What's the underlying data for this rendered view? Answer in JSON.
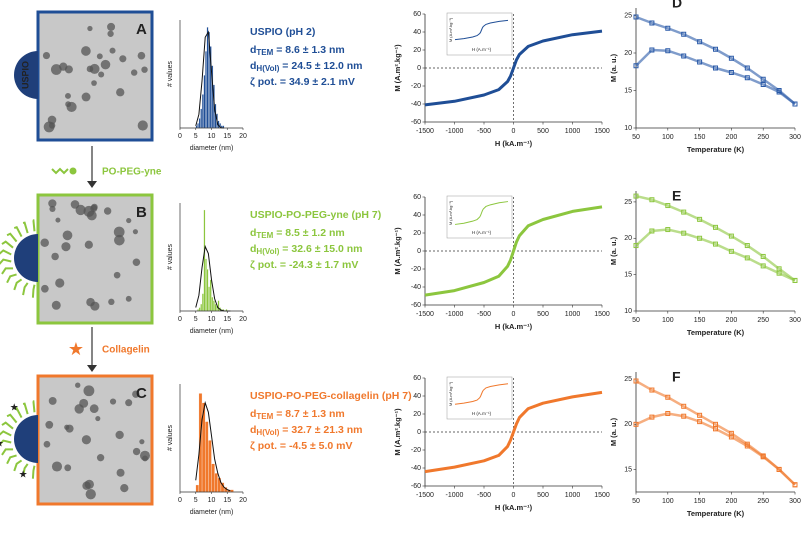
{
  "steps": [
    {
      "label": "PO-PEG-yne",
      "color": "#8cc63e"
    },
    {
      "label": "Collagelin",
      "color": "#f0782c"
    }
  ],
  "rows": [
    {
      "letter": "A",
      "color": "#1f4e96",
      "particle_label": "USPIO",
      "histogram": {
        "type": "histogram",
        "bins": [
          5,
          5.5,
          6,
          6.5,
          7,
          7.5,
          8,
          8.5,
          9,
          9.5,
          10,
          10.5,
          11,
          11.5,
          12,
          12.5,
          13,
          13.5,
          14
        ],
        "counts": [
          1,
          2,
          4,
          8,
          14,
          22,
          32,
          42,
          40,
          34,
          26,
          18,
          10,
          6,
          3,
          2,
          1,
          1
        ],
        "xlim": [
          0,
          20
        ],
        "ylim": [
          0,
          45
        ],
        "xticks": [
          0,
          5,
          10,
          15,
          20
        ],
        "xlabel": "diameter (nm)",
        "ylabel": "# values",
        "fit": {
          "x": [
            5,
            6,
            7,
            8,
            9,
            10,
            11,
            12,
            13,
            14
          ],
          "values": [
            0.9,
            5.7,
            19.7,
            37.8,
            40,
            23.5,
            7.7,
            1.4,
            0.1,
            0
          ]
        }
      },
      "info": {
        "title": "USPIO (pH 2)",
        "lines": [
          {
            "symbol": "d",
            "sub": "TEM",
            "text": " = 8.6 ± 1.3 nm"
          },
          {
            "symbol": "d",
            "sub": "H(Vol)",
            "text": " = 24.5 ± 12.0 nm"
          },
          {
            "symbol": "ζ pot.",
            "sub": "",
            "text": " = 34.9 ± 2.1 mV"
          }
        ]
      },
      "magnetization": {
        "type": "line",
        "x": [
          -1500,
          -1000,
          -500,
          -250,
          -100,
          -50,
          0,
          50,
          100,
          250,
          500,
          1000,
          1500
        ],
        "values": [
          -41,
          -37,
          -30,
          -24,
          -15,
          -9,
          0,
          9,
          15,
          24,
          30,
          37,
          41
        ],
        "xlim": [
          -1500,
          1500
        ],
        "ylim": [
          -60,
          60
        ],
        "xticks": [
          -1500,
          -1000,
          -500,
          0,
          500,
          1000,
          1500
        ],
        "yticks": [
          -60,
          -40,
          -20,
          0,
          20,
          40,
          60
        ],
        "xlabel": "H (kA.m⁻¹)",
        "ylabel": "M (A.m².kg⁻¹)",
        "inset_xlabel": "H (A.m⁻¹)",
        "inset_ylabel": "M (A.m².kg⁻¹)"
      },
      "temperature": {
        "type": "scatter",
        "letter": "D",
        "x": [
          50,
          75,
          100,
          125,
          150,
          175,
          200,
          225,
          250,
          275,
          300
        ],
        "series": [
          {
            "color": "#2a5aa8",
            "values": [
              24.8,
              24,
              23.3,
              22.5,
              21.5,
              20.5,
              19.3,
              18,
              16.5,
              15,
              13.2
            ]
          },
          {
            "color": "#2a5aa8",
            "values": [
              18.3,
              20.4,
              20.3,
              19.6,
              18.8,
              18,
              17.4,
              16.7,
              15.8,
              14.8,
              13.2
            ]
          }
        ],
        "xlim": [
          50,
          300
        ],
        "ylim": [
          10,
          26
        ],
        "xticks": [
          50,
          100,
          150,
          200,
          250,
          300
        ],
        "yticks": [
          10,
          15,
          20,
          25
        ],
        "xlabel": "Temperature (K)",
        "ylabel": "M (a. u.)"
      }
    },
    {
      "letter": "B",
      "color": "#8cc63e",
      "histogram": {
        "type": "histogram",
        "bins": [
          5,
          5.5,
          6,
          6.5,
          7,
          7.5,
          8,
          8.5,
          9,
          9.5,
          10,
          10.5,
          11,
          11.5,
          12,
          12.5,
          13,
          13.5,
          14,
          14.5,
          15
        ],
        "counts": [
          0,
          1,
          2,
          4,
          10,
          58,
          30,
          24,
          14,
          18,
          8,
          6,
          4,
          3,
          6,
          2,
          1,
          1,
          0,
          1
        ],
        "xlim": [
          0,
          20
        ],
        "ylim": [
          0,
          62
        ],
        "xticks": [
          0,
          5,
          10,
          15,
          20
        ],
        "xlabel": "diameter (nm)",
        "ylabel": "# values",
        "fit": {
          "x": [
            5,
            6,
            7,
            8,
            9,
            10,
            11,
            12,
            13,
            14,
            15,
            16
          ],
          "values": [
            2,
            9,
            25,
            37,
            33,
            18,
            7,
            2,
            0.5,
            0.1,
            0,
            0
          ]
        }
      },
      "info": {
        "title": "USPIO-PO-PEG-yne (pH 7)",
        "lines": [
          {
            "symbol": "d",
            "sub": "TEM",
            "text": " = 8.5 ± 1.2 nm"
          },
          {
            "symbol": "d",
            "sub": "H(Vol)",
            "text": " = 32.6 ± 15.0 nm"
          },
          {
            "symbol": "ζ pot.",
            "sub": "",
            "text": " = -24.3 ± 1.7 mV"
          }
        ]
      },
      "magnetization": {
        "type": "line",
        "x": [
          -1500,
          -1000,
          -500,
          -250,
          -100,
          -50,
          0,
          50,
          100,
          250,
          500,
          1000,
          1500
        ],
        "values": [
          -49,
          -44,
          -35,
          -28,
          -17,
          -10,
          0,
          10,
          17,
          28,
          35,
          44,
          49
        ],
        "xlim": [
          -1500,
          1500
        ],
        "ylim": [
          -60,
          60
        ],
        "xticks": [
          -1500,
          -1000,
          -500,
          0,
          500,
          1000,
          1500
        ],
        "yticks": [
          -60,
          -40,
          -20,
          0,
          20,
          40,
          60
        ],
        "xlabel": "H (kA.m⁻¹)",
        "ylabel": "M (A.m².kg⁻¹)",
        "inset_xlabel": "H (A.m⁻¹)",
        "inset_ylabel": "M (A.m².kg⁻¹)"
      },
      "temperature": {
        "type": "scatter",
        "letter": "E",
        "x": [
          50,
          75,
          100,
          125,
          150,
          175,
          200,
          225,
          250,
          275,
          300
        ],
        "series": [
          {
            "color": "#8cc63e",
            "values": [
              25.8,
              25.3,
              24.5,
              23.6,
              22.6,
              21.5,
              20.3,
              19,
              17.5,
              15.8,
              14.2
            ]
          },
          {
            "color": "#8cc63e",
            "values": [
              19,
              21,
              21.2,
              20.7,
              20,
              19.2,
              18.2,
              17.3,
              16.2,
              15.2,
              14.2
            ]
          }
        ],
        "xlim": [
          50,
          300
        ],
        "ylim": [
          10,
          26.5
        ],
        "xticks": [
          50,
          100,
          150,
          200,
          250,
          300
        ],
        "yticks": [
          10,
          15,
          20,
          25
        ],
        "xlabel": "Temperature (K)",
        "ylabel": "M (a. u.)"
      }
    },
    {
      "letter": "C",
      "color": "#f0782c",
      "histogram": {
        "type": "histogram",
        "bins": [
          5,
          6,
          7,
          8,
          9,
          10,
          11,
          12,
          13,
          14,
          15,
          16,
          17
        ],
        "counts": [
          3,
          42,
          38,
          30,
          22,
          12,
          8,
          6,
          4,
          2,
          1,
          1
        ],
        "xlim": [
          0,
          20
        ],
        "ylim": [
          0,
          46
        ],
        "xticks": [
          0,
          5,
          10,
          15,
          20
        ],
        "xlabel": "diameter (nm)",
        "ylabel": "# values",
        "fit": {
          "x": [
            5,
            6,
            7,
            8,
            9,
            10,
            11,
            12,
            13,
            14,
            15,
            16
          ],
          "values": [
            5,
            16,
            31,
            38,
            34,
            24,
            14,
            8,
            4,
            2,
            1,
            0.5
          ]
        }
      },
      "info": {
        "title": "USPIO-PO-PEG-collagelin (pH 7)",
        "lines": [
          {
            "symbol": "d",
            "sub": "TEM",
            "text": " = 8.7 ± 1.3 nm"
          },
          {
            "symbol": "d",
            "sub": "H(Vol)",
            "text": " = 32.7 ± 21.3 nm"
          },
          {
            "symbol": "ζ pot.",
            "sub": "",
            "text": " = -4.5 ± 5.0 mV"
          }
        ]
      },
      "magnetization": {
        "type": "line",
        "x": [
          -1500,
          -1000,
          -500,
          -250,
          -100,
          -50,
          0,
          50,
          100,
          250,
          500,
          1000,
          1500
        ],
        "values": [
          -44,
          -39,
          -32,
          -26,
          -16,
          -9,
          0,
          9,
          16,
          26,
          32,
          39,
          44
        ],
        "xlim": [
          -1500,
          1500
        ],
        "ylim": [
          -60,
          60
        ],
        "xticks": [
          -1500,
          -1000,
          -500,
          0,
          500,
          1000,
          1500
        ],
        "yticks": [
          -60,
          -40,
          -20,
          0,
          20,
          40,
          60
        ],
        "xlabel": "H (kA.m⁻¹)",
        "ylabel": "M (A.m².kg⁻¹)",
        "inset_xlabel": "H (A.m⁻¹)",
        "inset_ylabel": "M (A.m².kg⁻¹)"
      },
      "temperature": {
        "type": "scatter",
        "letter": "F",
        "x": [
          50,
          75,
          100,
          125,
          150,
          175,
          200,
          225,
          250,
          275,
          300
        ],
        "series": [
          {
            "color": "#f0782c",
            "values": [
              24.8,
              23.8,
              23,
              22,
              21,
              20,
              19,
              17.8,
              16.5,
              15,
              13.3
            ]
          },
          {
            "color": "#f0782c",
            "values": [
              20,
              20.8,
              21.2,
              20.9,
              20.3,
              19.5,
              18.6,
              17.6,
              16.4,
              15,
              13.3
            ]
          }
        ],
        "xlim": [
          50,
          300
        ],
        "ylim": [
          12.5,
          25.8
        ],
        "xticks": [
          50,
          100,
          150,
          200,
          250,
          300
        ],
        "yticks": [
          15,
          20,
          25
        ],
        "xlabel": "Temperature (K)",
        "ylabel": "M (a. u.)"
      }
    }
  ]
}
